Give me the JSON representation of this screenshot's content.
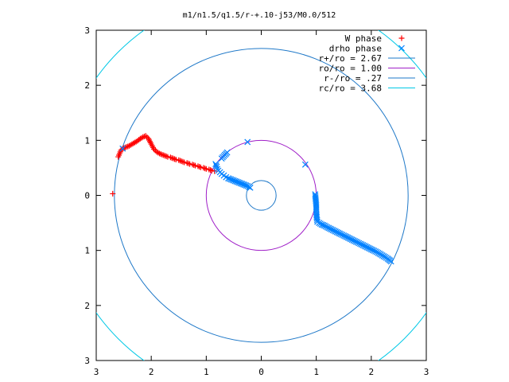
{
  "chart_data": {
    "type": "scatter",
    "title": "m1/n1.5/q1.5/r-+.10-j53/M0.0/512",
    "xlabel": "",
    "ylabel": "",
    "xlim": [
      -3,
      3
    ],
    "ylim": [
      -3,
      3
    ],
    "x_tick_labels": [
      "3",
      "2",
      "1",
      "0",
      "1",
      "2",
      "3"
    ],
    "y_tick_labels": [
      "3",
      "2",
      "1",
      "0",
      "1",
      "2",
      "3"
    ],
    "grid": false,
    "legend_position": "top-right",
    "series": [
      {
        "name": "W phase",
        "kind": "points",
        "marker": "+",
        "color": "#ff0000",
        "x": [
          -2.7,
          -2.6,
          -2.55,
          -2.5,
          -2.45,
          -2.4,
          -2.35,
          -2.3,
          -2.25,
          -2.2,
          -2.15,
          -2.1,
          -2.05,
          -2.0,
          -1.95,
          -1.9,
          -1.85,
          -1.8,
          -1.75,
          -1.7,
          -1.65,
          -1.6,
          -1.55,
          -1.5,
          -1.45,
          -1.4,
          -1.35,
          -1.3,
          -1.25,
          -1.2,
          -1.15,
          -1.1,
          -1.05,
          -1.0,
          -0.95,
          -0.9,
          -0.85
        ],
        "y": [
          0.03,
          0.7,
          0.82,
          0.86,
          0.88,
          0.9,
          0.93,
          0.96,
          0.99,
          1.03,
          1.06,
          1.08,
          1.03,
          0.93,
          0.84,
          0.79,
          0.76,
          0.74,
          0.72,
          0.7,
          0.69,
          0.67,
          0.65,
          0.64,
          0.62,
          0.6,
          0.59,
          0.57,
          0.56,
          0.54,
          0.53,
          0.51,
          0.5,
          0.48,
          0.47,
          0.45,
          0.44
        ]
      },
      {
        "name": "drho phase",
        "kind": "points",
        "marker": "x",
        "color": "#0080ff",
        "x": [
          -2.52,
          -0.83,
          -0.81,
          -0.8,
          -0.78,
          -0.75,
          -0.72,
          -0.68,
          -0.64,
          -0.6,
          -0.55,
          -0.5,
          -0.45,
          -0.4,
          -0.35,
          -0.3,
          -0.25,
          -0.2,
          -0.72,
          -0.62,
          -0.25,
          0.8,
          0.98,
          1.0,
          1.0,
          1.01,
          1.02,
          1.05,
          1.1,
          1.15,
          1.2,
          1.3,
          1.4,
          1.5,
          1.6,
          1.7,
          1.8,
          1.9,
          2.0,
          2.1,
          2.2,
          2.3,
          2.36
        ],
        "y": [
          0.85,
          0.57,
          0.52,
          0.48,
          0.45,
          0.42,
          0.39,
          0.36,
          0.33,
          0.31,
          0.29,
          0.27,
          0.25,
          0.23,
          0.21,
          0.19,
          0.17,
          0.14,
          0.67,
          0.78,
          0.97,
          0.56,
          0.02,
          -0.18,
          -0.3,
          -0.42,
          -0.48,
          -0.5,
          -0.53,
          -0.55,
          -0.58,
          -0.63,
          -0.68,
          -0.73,
          -0.78,
          -0.83,
          -0.88,
          -0.93,
          -0.98,
          -1.03,
          -1.09,
          -1.15,
          -1.2
        ]
      },
      {
        "name": "r+/ro = 2.67",
        "kind": "circle",
        "radius": 2.67,
        "color": "#1e78c8"
      },
      {
        "name": "ro/ro = 1.00",
        "kind": "circle",
        "radius": 1.0,
        "color": "#a020c8"
      },
      {
        "name": "r-/ro = .27",
        "kind": "circle",
        "radius": 0.27,
        "color": "#1e78c8"
      },
      {
        "name": "rc/ro = 3.68",
        "kind": "circle",
        "radius": 3.68,
        "color": "#00c8e6"
      }
    ]
  }
}
